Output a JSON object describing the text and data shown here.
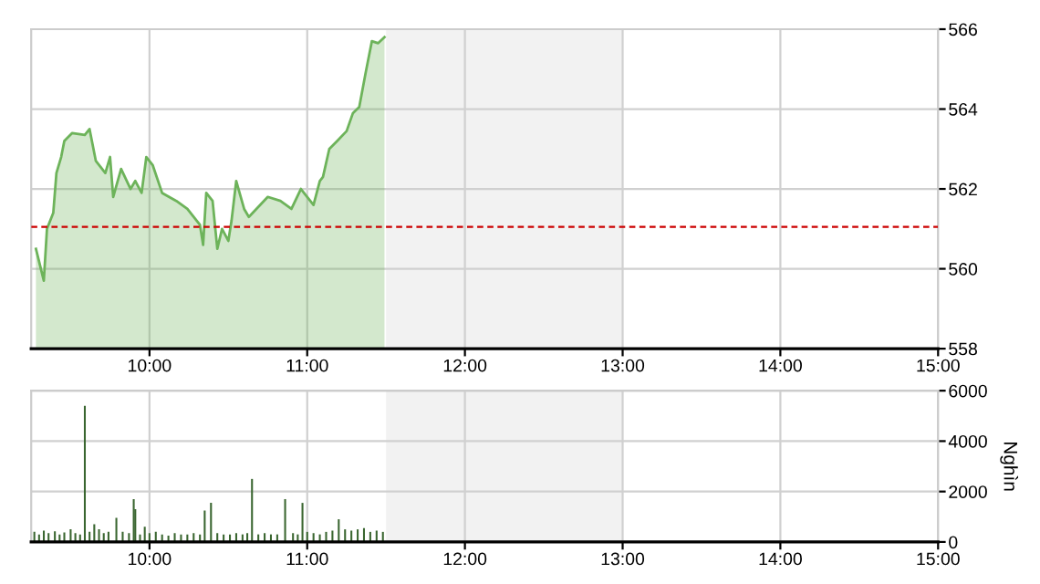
{
  "chart_data": [
    {
      "type": "area",
      "xlim": [
        9.25,
        15
      ],
      "ylim": [
        558,
        566
      ],
      "xticks": [
        {
          "value": 10,
          "label": "10:00"
        },
        {
          "value": 11,
          "label": "11:00"
        },
        {
          "value": 12,
          "label": "12:00"
        },
        {
          "value": 13,
          "label": "13:00"
        },
        {
          "value": 14,
          "label": "14:00"
        },
        {
          "value": 15,
          "label": "15:00"
        }
      ],
      "yticks": [
        558,
        560,
        562,
        564,
        566
      ],
      "grid": true,
      "series": [
        {
          "color": "#6db35a",
          "x": [
            9.28,
            9.33,
            9.35,
            9.39,
            9.41,
            9.44,
            9.46,
            9.51,
            9.59,
            9.62,
            9.66,
            9.72,
            9.75,
            9.77,
            9.82,
            9.88,
            9.91,
            9.95,
            9.98,
            10.02,
            10.08,
            10.17,
            10.24,
            10.32,
            10.34,
            10.36,
            10.4,
            10.43,
            10.46,
            10.5,
            10.52,
            10.55,
            10.6,
            10.63,
            10.69,
            10.75,
            10.83,
            10.9,
            10.96,
            11.0,
            11.04,
            11.08,
            11.1,
            11.14,
            11.19,
            11.25,
            11.29,
            11.33,
            11.37,
            11.41,
            11.45,
            11.49
          ],
          "values": [
            560.5,
            559.7,
            561.0,
            561.4,
            562.4,
            562.8,
            563.2,
            563.4,
            563.35,
            563.5,
            562.7,
            562.4,
            562.8,
            561.8,
            562.5,
            562.0,
            562.2,
            561.9,
            562.8,
            562.6,
            561.9,
            561.7,
            561.5,
            561.1,
            560.6,
            561.9,
            561.7,
            560.5,
            561.0,
            560.7,
            561.2,
            562.2,
            561.5,
            561.3,
            561.55,
            561.8,
            561.7,
            561.5,
            562.0,
            561.8,
            561.6,
            562.2,
            562.3,
            563.0,
            563.2,
            563.45,
            563.9,
            564.05,
            564.9,
            565.7,
            565.65,
            565.8
          ]
        }
      ],
      "ref_lines": [
        {
          "axis": "y",
          "value": 561.05,
          "color": "#cc0000",
          "line_style": "dashed"
        }
      ],
      "bands": [
        {
          "axis": "x",
          "from": 11.5,
          "to": 13,
          "color": "#f2f2f2"
        }
      ]
    },
    {
      "type": "bar",
      "xlim": [
        9.25,
        15
      ],
      "ylim": [
        0,
        6000
      ],
      "ylabel": "Nghìn",
      "xticks": [
        {
          "value": 10,
          "label": "10:00"
        },
        {
          "value": 11,
          "label": "11:00"
        },
        {
          "value": 12,
          "label": "12:00"
        },
        {
          "value": 13,
          "label": "13:00"
        },
        {
          "value": 14,
          "label": "14:00"
        },
        {
          "value": 15,
          "label": "15:00"
        }
      ],
      "yticks": [
        0,
        2000,
        4000,
        6000
      ],
      "grid": true,
      "series": [
        {
          "color": "#3a6630",
          "x": [
            9.27,
            9.3,
            9.33,
            9.36,
            9.4,
            9.43,
            9.46,
            9.5,
            9.53,
            9.56,
            9.59,
            9.62,
            9.65,
            9.68,
            9.71,
            9.74,
            9.79,
            9.83,
            9.87,
            9.9,
            9.91,
            9.94,
            9.97,
            10.0,
            10.04,
            10.08,
            10.12,
            10.16,
            10.2,
            10.24,
            10.28,
            10.32,
            10.35,
            10.39,
            10.43,
            10.47,
            10.51,
            10.55,
            10.59,
            10.62,
            10.65,
            10.69,
            10.73,
            10.77,
            10.81,
            10.86,
            10.91,
            10.94,
            10.97,
            11.0,
            11.04,
            11.08,
            11.12,
            11.16,
            11.2,
            11.24,
            11.28,
            11.32,
            11.36,
            11.4,
            11.44,
            11.48
          ],
          "values": [
            400,
            300,
            450,
            350,
            420,
            300,
            380,
            500,
            350,
            300,
            5400,
            400,
            700,
            500,
            350,
            400,
            960,
            400,
            350,
            1700,
            1300,
            300,
            600,
            350,
            400,
            300,
            250,
            350,
            300,
            300,
            350,
            300,
            1250,
            1550,
            350,
            300,
            300,
            350,
            300,
            350,
            2500,
            300,
            350,
            300,
            300,
            1700,
            350,
            300,
            1550,
            400,
            350,
            300,
            400,
            450,
            900,
            500,
            450,
            500,
            550,
            400,
            450,
            400
          ]
        }
      ],
      "bands": [
        {
          "axis": "x",
          "from": 11.5,
          "to": 13,
          "color": "#f2f2f2"
        }
      ]
    }
  ]
}
